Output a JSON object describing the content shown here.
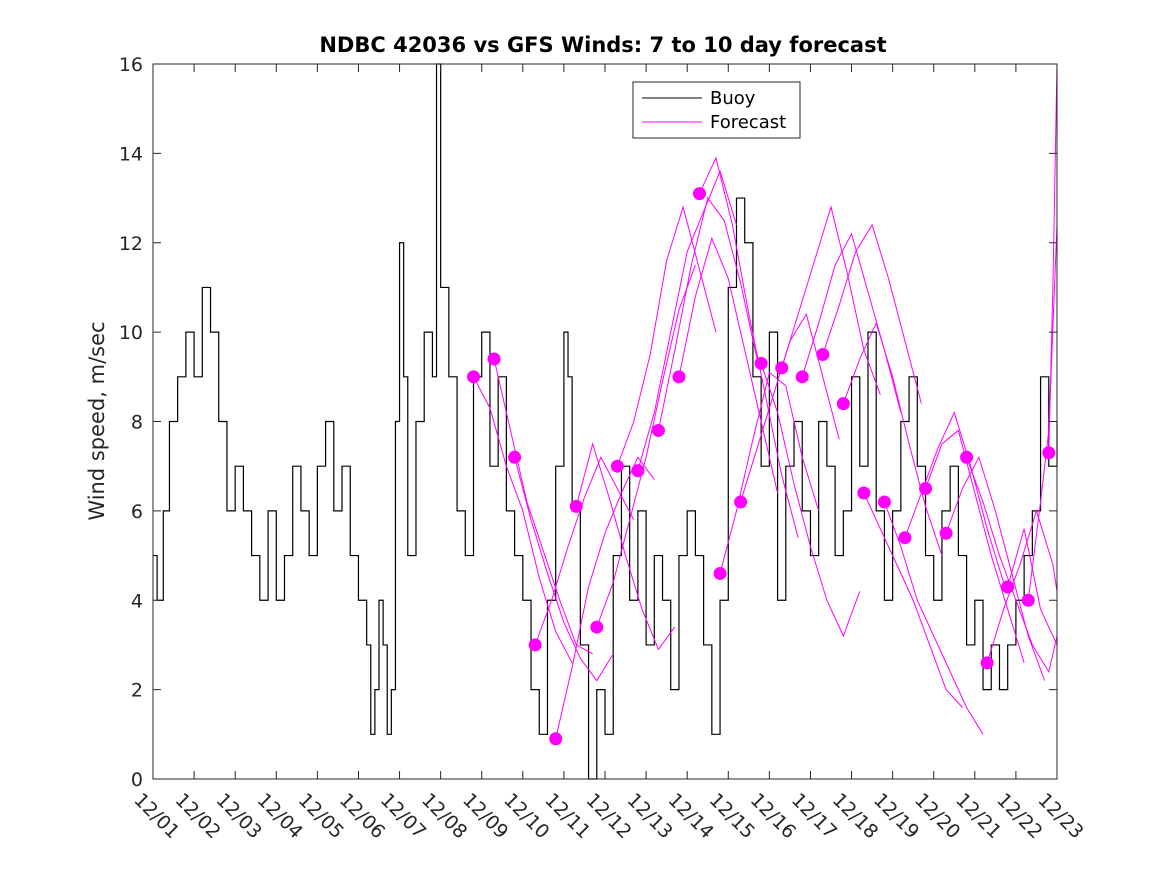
{
  "chart_data": {
    "type": "line",
    "title": "NDBC 42036 vs GFS Winds: 7 to 10 day forecast",
    "xlabel": "",
    "ylabel": "Wind speed, m/sec",
    "xlim": [
      1,
      23
    ],
    "ylim": [
      0,
      16
    ],
    "yticks": [
      0,
      2,
      4,
      6,
      8,
      10,
      12,
      14,
      16
    ],
    "categories": [
      "12/01",
      "12/02",
      "12/03",
      "12/04",
      "12/05",
      "12/06",
      "12/07",
      "12/08",
      "12/09",
      "12/10",
      "12/11",
      "12/12",
      "12/13",
      "12/14",
      "12/15",
      "12/16",
      "12/17",
      "12/18",
      "12/19",
      "12/20",
      "12/21",
      "12/22",
      "12/23"
    ],
    "legend": {
      "location": "top-center",
      "entries": [
        "Buoy",
        "Forecast"
      ]
    },
    "colors": {
      "buoy": "#000000",
      "forecast": "#ff00ff"
    },
    "series": [
      {
        "name": "Buoy",
        "x": [
          1.0,
          1.1,
          1.25,
          1.4,
          1.6,
          1.8,
          2.0,
          2.2,
          2.4,
          2.6,
          2.8,
          3.0,
          3.2,
          3.4,
          3.6,
          3.8,
          4.0,
          4.2,
          4.4,
          4.6,
          4.8,
          5.0,
          5.2,
          5.4,
          5.6,
          5.8,
          6.0,
          6.2,
          6.3,
          6.4,
          6.5,
          6.6,
          6.7,
          6.8,
          6.9,
          7.0,
          7.1,
          7.2,
          7.4,
          7.6,
          7.8,
          7.9,
          8.0,
          8.2,
          8.4,
          8.6,
          8.8,
          9.0,
          9.2,
          9.4,
          9.6,
          9.8,
          10.0,
          10.2,
          10.4,
          10.6,
          10.8,
          11.0,
          11.1,
          11.2,
          11.4,
          11.6,
          11.8,
          12.0,
          12.2,
          12.4,
          12.6,
          12.8,
          13.0,
          13.2,
          13.4,
          13.6,
          13.8,
          14.0,
          14.2,
          14.4,
          14.6,
          14.8,
          15.0,
          15.2,
          15.4,
          15.6,
          15.8,
          16.0,
          16.2,
          16.4,
          16.6,
          16.8,
          17.0,
          17.2,
          17.4,
          17.6,
          17.8,
          18.0,
          18.2,
          18.4,
          18.6,
          18.8,
          19.0,
          19.2,
          19.4,
          19.6,
          19.8,
          20.0,
          20.2,
          20.4,
          20.6,
          20.8,
          21.0,
          21.2,
          21.4,
          21.6,
          21.8,
          22.0,
          22.2,
          22.4,
          22.6,
          22.8,
          23.0
        ],
        "values": [
          5,
          4,
          6,
          8,
          9,
          10,
          9,
          11,
          10,
          8,
          6,
          7,
          6,
          5,
          4,
          6,
          4,
          5,
          7,
          6,
          5,
          7,
          8,
          6,
          7,
          5,
          4,
          3,
          1,
          2,
          4,
          3,
          1,
          2,
          8,
          12,
          9,
          5,
          8,
          10,
          9,
          16,
          11,
          9,
          6,
          5,
          9,
          10,
          7,
          9,
          6,
          5,
          4,
          2,
          1,
          4,
          7,
          10,
          9,
          6,
          3,
          0,
          2,
          1,
          5,
          7,
          4,
          6,
          3,
          5,
          4,
          2,
          5,
          6,
          5,
          3,
          1,
          4,
          11,
          13,
          12,
          9,
          7,
          10,
          4,
          7,
          8,
          6,
          5,
          8,
          7,
          5,
          6,
          9,
          7,
          10,
          6,
          4,
          6,
          8,
          9,
          7,
          5,
          4,
          6,
          7,
          5,
          3,
          4,
          2,
          3,
          2,
          3,
          4,
          5,
          6,
          9,
          7,
          8
        ]
      }
    ],
    "forecast_runs": [
      {
        "name": "Forecast",
        "x": [
          8.8,
          9.2,
          9.6,
          10.0,
          10.4,
          10.8,
          11.2
        ],
        "values": [
          9.0,
          8.3,
          7.0,
          6.0,
          4.5,
          3.3,
          2.6
        ]
      },
      {
        "name": "Forecast",
        "x": [
          9.3,
          9.7,
          10.1,
          10.5,
          10.9,
          11.3,
          11.7
        ],
        "values": [
          9.4,
          7.8,
          6.2,
          5.1,
          4.0,
          3.0,
          2.8
        ]
      },
      {
        "name": "Forecast",
        "x": [
          9.8,
          10.2,
          10.6,
          11.0,
          11.4,
          11.8,
          12.2
        ],
        "values": [
          7.2,
          5.8,
          4.6,
          3.5,
          2.7,
          2.2,
          2.8
        ]
      },
      {
        "name": "Forecast",
        "x": [
          10.3,
          10.7,
          11.1,
          11.5,
          11.9,
          12.3,
          12.7
        ],
        "values": [
          3.0,
          4.0,
          5.2,
          6.3,
          7.2,
          6.5,
          5.8
        ]
      },
      {
        "name": "Forecast",
        "x": [
          10.8,
          11.2,
          11.6,
          12.0,
          12.4,
          12.8,
          13.2
        ],
        "values": [
          0.9,
          2.5,
          4.3,
          5.5,
          6.4,
          7.2,
          6.7
        ]
      },
      {
        "name": "Forecast",
        "x": [
          11.3,
          11.7,
          12.1,
          12.5,
          12.9,
          13.3,
          13.7
        ],
        "values": [
          6.1,
          7.5,
          6.3,
          5.0,
          3.8,
          2.9,
          3.4
        ]
      },
      {
        "name": "Forecast",
        "x": [
          11.8,
          12.2,
          12.6,
          13.0,
          13.4,
          13.8,
          14.2
        ],
        "values": [
          3.4,
          4.4,
          5.8,
          7.2,
          8.9,
          10.5,
          11.5
        ]
      },
      {
        "name": "Forecast",
        "x": [
          12.3,
          12.7,
          13.1,
          13.5,
          13.9,
          14.3,
          14.7
        ],
        "values": [
          7.0,
          8.0,
          9.5,
          11.6,
          12.8,
          11.4,
          10.0
        ]
      },
      {
        "name": "Forecast",
        "x": [
          12.8,
          13.2,
          13.6,
          14.0,
          14.4,
          14.8,
          15.2
        ],
        "values": [
          6.9,
          8.2,
          10.0,
          11.8,
          12.7,
          13.6,
          12.4
        ]
      },
      {
        "name": "Forecast",
        "x": [
          13.3,
          13.7,
          14.1,
          14.5,
          14.9,
          15.3,
          15.7
        ],
        "values": [
          7.8,
          9.6,
          11.5,
          13.0,
          12.5,
          11.1,
          9.4
        ]
      },
      {
        "name": "Forecast",
        "x": [
          13.8,
          14.2,
          14.6,
          15.0,
          15.4,
          15.8,
          16.2
        ],
        "values": [
          9.0,
          10.8,
          12.1,
          11.2,
          9.6,
          8.0,
          6.4
        ]
      },
      {
        "name": "Forecast",
        "x": [
          14.3,
          14.7,
          15.1,
          15.5,
          15.9,
          16.3,
          16.7
        ],
        "values": [
          13.1,
          13.9,
          12.4,
          10.4,
          8.6,
          6.8,
          5.4
        ]
      },
      {
        "name": "Forecast",
        "x": [
          14.8,
          15.2,
          15.6,
          16.0,
          16.4,
          16.8,
          17.2
        ],
        "values": [
          4.6,
          6.0,
          7.6,
          9.1,
          8.8,
          7.2,
          6.0
        ]
      },
      {
        "name": "Forecast",
        "x": [
          15.3,
          15.7,
          16.1,
          16.5,
          16.9,
          17.3,
          17.7
        ],
        "values": [
          6.2,
          7.4,
          8.6,
          9.8,
          10.4,
          9.0,
          7.6
        ]
      },
      {
        "name": "Forecast",
        "x": [
          15.8,
          16.2,
          16.6,
          17.0,
          17.4,
          17.8,
          18.2
        ],
        "values": [
          9.3,
          8.2,
          6.6,
          5.2,
          4.0,
          3.2,
          4.2
        ]
      },
      {
        "name": "Forecast",
        "x": [
          16.3,
          16.7,
          17.1,
          17.5,
          17.9,
          18.3,
          18.7
        ],
        "values": [
          9.2,
          10.4,
          11.6,
          12.8,
          11.3,
          9.6,
          8.6
        ]
      },
      {
        "name": "Forecast",
        "x": [
          16.8,
          17.2,
          17.6,
          18.0,
          18.4,
          18.8,
          19.2
        ],
        "values": [
          9.0,
          10.2,
          11.5,
          12.2,
          10.9,
          9.6,
          8.2
        ]
      },
      {
        "name": "Forecast",
        "x": [
          17.3,
          17.7,
          18.1,
          18.5,
          18.9,
          19.3,
          19.7
        ],
        "values": [
          9.5,
          10.6,
          11.8,
          12.4,
          11.2,
          9.8,
          8.4
        ]
      },
      {
        "name": "Forecast",
        "x": [
          17.8,
          18.2,
          18.6,
          19.0,
          19.4,
          19.8,
          20.2
        ],
        "values": [
          8.4,
          9.4,
          10.2,
          9.0,
          7.5,
          6.1,
          5.0
        ]
      },
      {
        "name": "Forecast",
        "x": [
          18.3,
          18.7,
          19.1,
          19.5,
          19.9,
          20.3,
          20.7
        ],
        "values": [
          6.4,
          5.6,
          4.8,
          4.0,
          3.0,
          2.0,
          1.6
        ]
      },
      {
        "name": "Forecast",
        "x": [
          18.8,
          19.2,
          19.6,
          20.0,
          20.4,
          20.8,
          21.2
        ],
        "values": [
          6.2,
          5.2,
          4.0,
          3.2,
          2.4,
          1.6,
          1.0
        ]
      },
      {
        "name": "Forecast",
        "x": [
          19.3,
          19.7,
          20.1,
          20.5,
          20.9,
          21.3,
          21.7
        ],
        "values": [
          5.4,
          6.4,
          7.4,
          8.2,
          7.0,
          5.6,
          4.4
        ]
      },
      {
        "name": "Forecast",
        "x": [
          19.8,
          20.2,
          20.6,
          21.0,
          21.4,
          21.8,
          22.2
        ],
        "values": [
          6.5,
          7.5,
          7.8,
          6.4,
          5.0,
          3.8,
          2.6
        ]
      },
      {
        "name": "Forecast",
        "x": [
          20.3,
          20.7,
          21.1,
          21.5,
          21.9,
          22.3,
          22.7
        ],
        "values": [
          5.5,
          6.5,
          7.2,
          6.0,
          4.6,
          3.2,
          2.2
        ]
      },
      {
        "name": "Forecast",
        "x": [
          20.8,
          21.2,
          21.6,
          22.0,
          22.4,
          22.8,
          23.0
        ],
        "values": [
          7.2,
          6.2,
          5.0,
          4.0,
          3.0,
          2.4,
          3.2
        ]
      },
      {
        "name": "Forecast",
        "x": [
          21.3,
          21.7,
          22.1,
          22.5,
          22.9,
          23.0
        ],
        "values": [
          2.6,
          3.8,
          4.8,
          6.0,
          4.8,
          4.2
        ]
      },
      {
        "name": "Forecast",
        "x": [
          21.8,
          22.2,
          22.6,
          23.0
        ],
        "values": [
          4.3,
          5.6,
          3.8,
          3.0
        ]
      },
      {
        "name": "Forecast",
        "x": [
          22.3,
          22.6,
          22.8,
          23.0
        ],
        "values": [
          4.0,
          6.2,
          7.8,
          12.4
        ]
      },
      {
        "name": "Forecast",
        "x": [
          22.8,
          22.9,
          23.0
        ],
        "values": [
          7.3,
          11.0,
          16.0
        ]
      }
    ]
  }
}
